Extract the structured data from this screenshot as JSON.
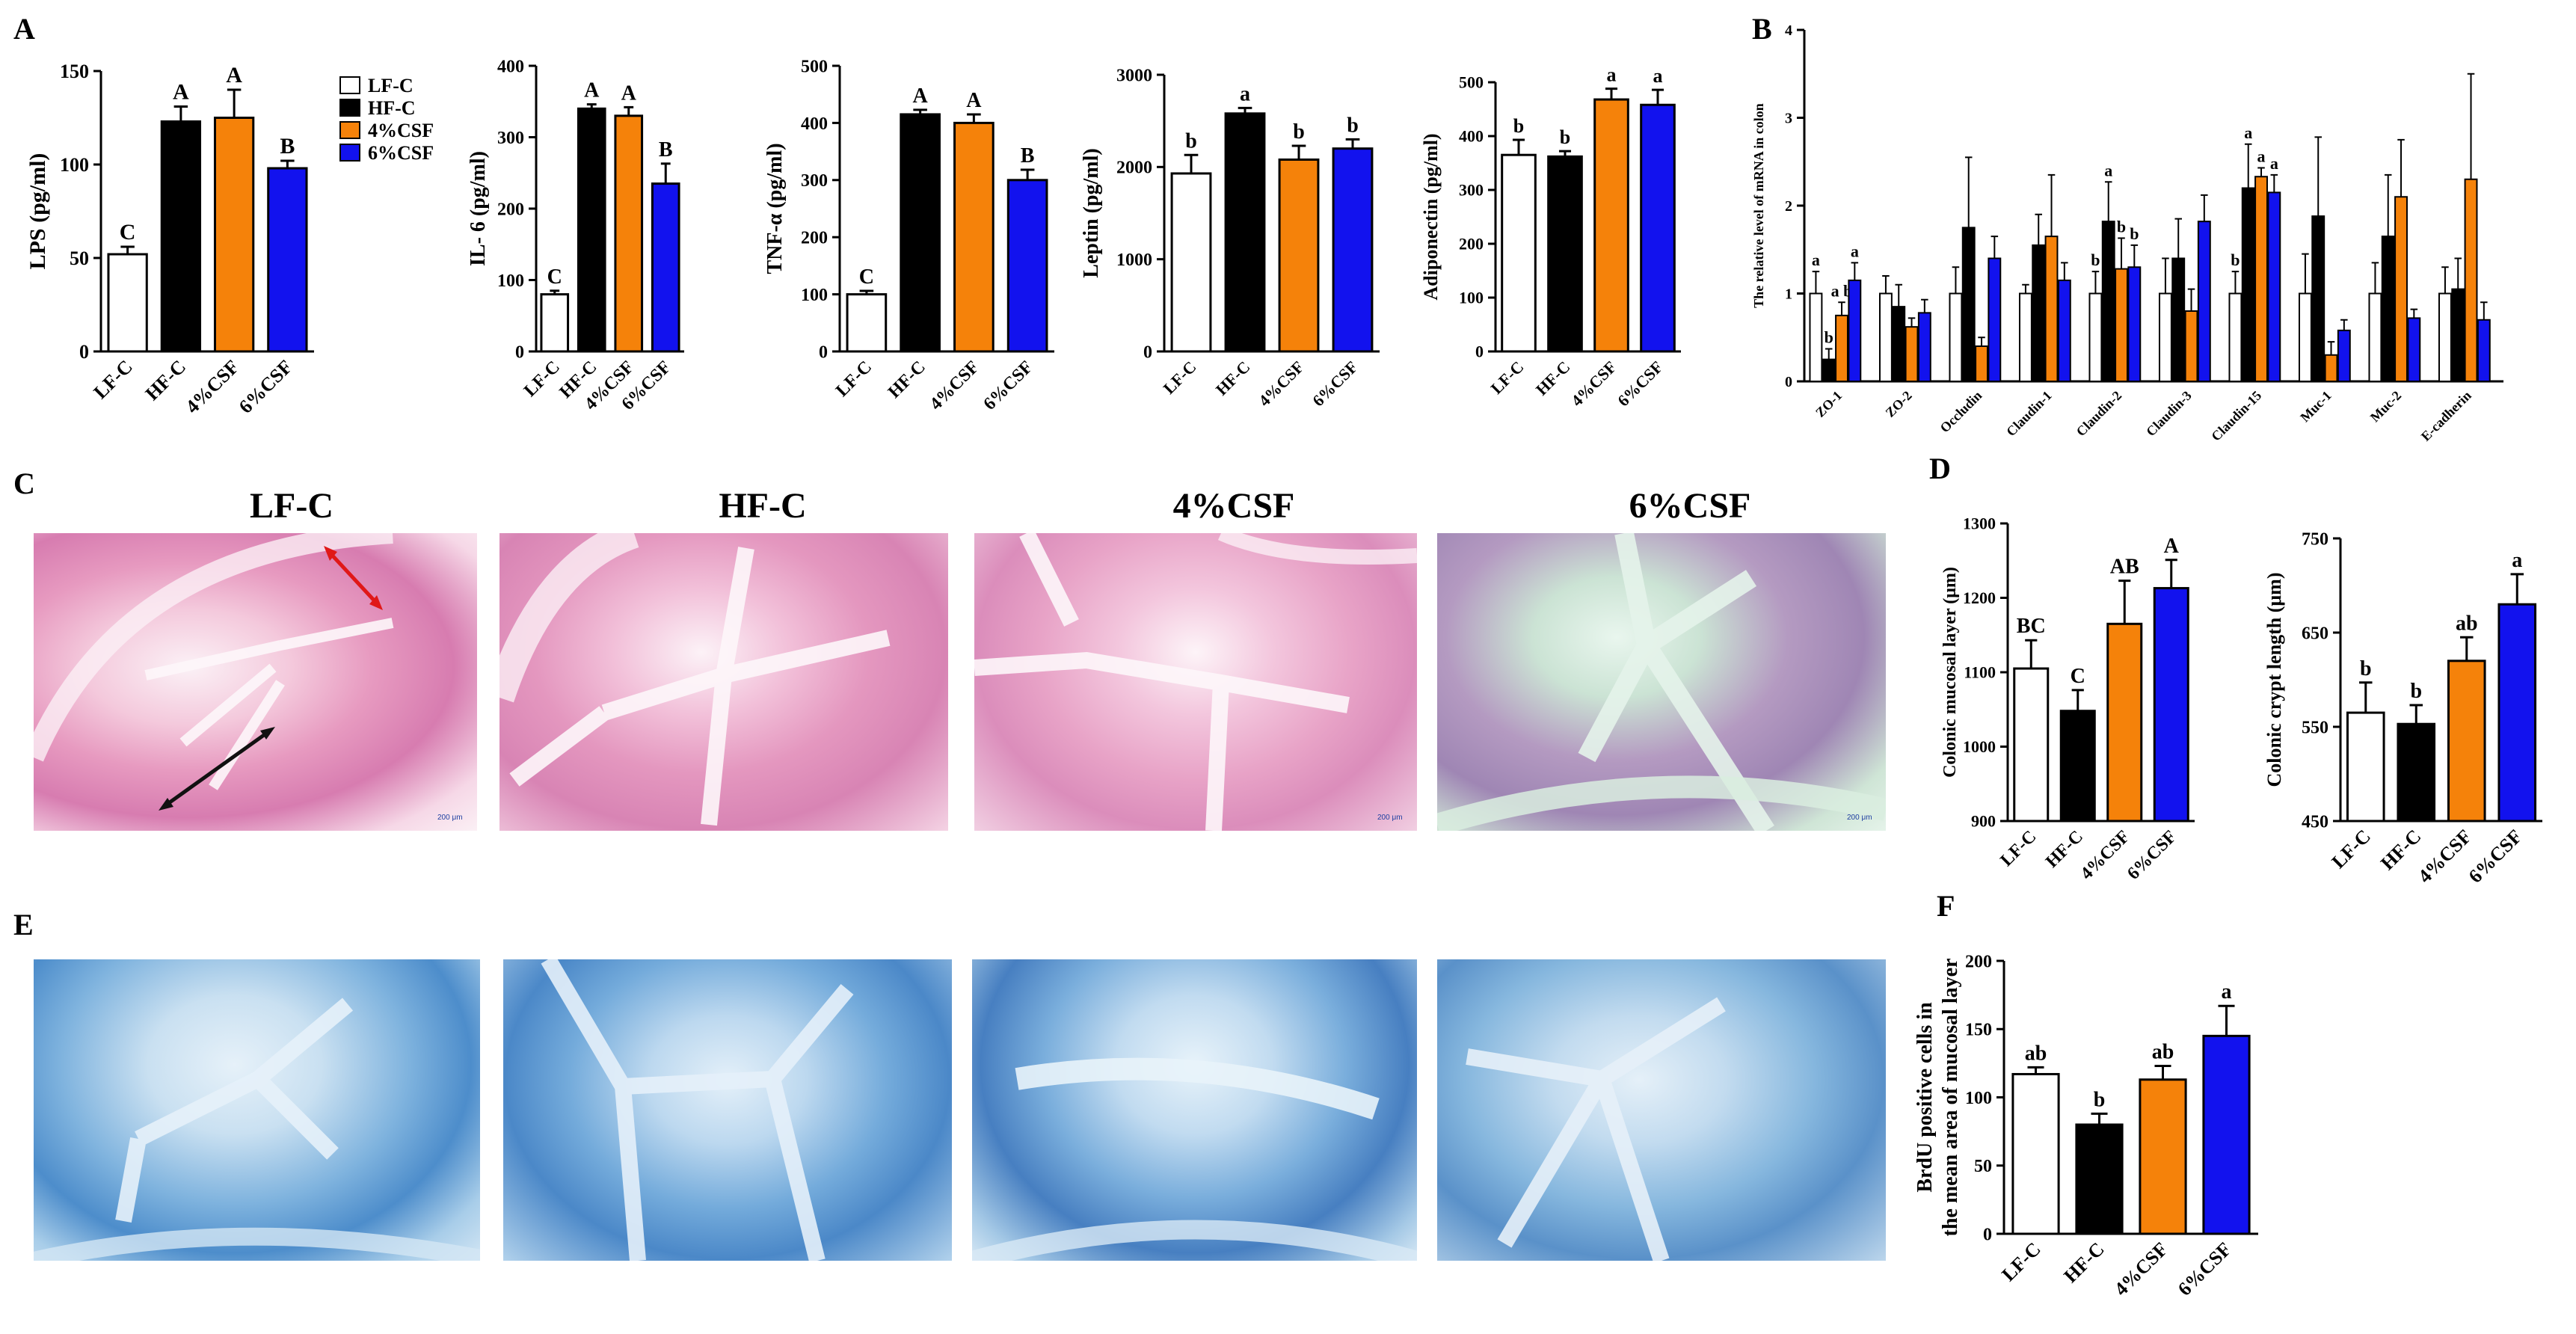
{
  "panel_labels": {
    "A": "A",
    "B": "B",
    "C": "C",
    "D": "D",
    "E": "E",
    "F": "F"
  },
  "colors": {
    "LF-C": "#ffffff",
    "HF-C": "#000000",
    "4%CSF": "#f5820a",
    "6%CSF": "#1212ee"
  },
  "legend": [
    "LF-C",
    "HF-C",
    "4%CSF",
    "6%CSF"
  ],
  "micrograph_titles": [
    "LF-C",
    "HF-C",
    "4%CSF",
    "6%CSF"
  ],
  "scale_label": "200 μm",
  "chart_data": [
    {
      "id": "lps",
      "type": "bar",
      "ylabel": "LPS (pg/ml)",
      "ylim": [
        0,
        150
      ],
      "yticks": [
        0,
        50,
        100,
        150
      ],
      "categories": [
        "LF-C",
        "HF-C",
        "4%CSF",
        "6%CSF"
      ],
      "values": [
        52,
        123,
        125,
        98
      ],
      "errors": [
        4,
        8,
        15,
        4
      ],
      "letters": [
        "C",
        "A",
        "A",
        "B"
      ]
    },
    {
      "id": "il6",
      "type": "bar",
      "ylabel": "IL- 6 (pg/ml)",
      "ylim": [
        0,
        400
      ],
      "yticks": [
        0,
        100,
        200,
        300,
        400
      ],
      "categories": [
        "LF-C",
        "HF-C",
        "4%CSF",
        "6%CSF"
      ],
      "values": [
        80,
        340,
        330,
        235
      ],
      "errors": [
        5,
        6,
        12,
        28
      ],
      "letters": [
        "C",
        "A",
        "A",
        "B"
      ]
    },
    {
      "id": "tnf",
      "type": "bar",
      "ylabel": "TNF-α  (pg/ml)",
      "ylim": [
        0,
        500
      ],
      "yticks": [
        0,
        100,
        200,
        300,
        400,
        500
      ],
      "categories": [
        "LF-C",
        "HF-C",
        "4%CSF",
        "6%CSF"
      ],
      "values": [
        100,
        415,
        400,
        300
      ],
      "errors": [
        6,
        8,
        15,
        18
      ],
      "letters": [
        "C",
        "A",
        "A",
        "B"
      ]
    },
    {
      "id": "leptin",
      "type": "bar",
      "ylabel": "Leptin (pg/ml)",
      "ylim": [
        0,
        3000
      ],
      "yticks": [
        0,
        1000,
        2000,
        3000
      ],
      "categories": [
        "LF-C",
        "HF-C",
        "4%CSF",
        "6%CSF"
      ],
      "values": [
        1930,
        2580,
        2080,
        2200
      ],
      "errors": [
        200,
        60,
        150,
        100
      ],
      "letters": [
        "b",
        "a",
        "b",
        "b"
      ]
    },
    {
      "id": "adiponectin",
      "type": "bar",
      "ylabel": "Adiponectin (pg/ml)",
      "ylim": [
        0,
        500
      ],
      "yticks": [
        0,
        100,
        200,
        300,
        400,
        500
      ],
      "categories": [
        "LF-C",
        "HF-C",
        "4%CSF",
        "6%CSF"
      ],
      "values": [
        365,
        362,
        468,
        458
      ],
      "errors": [
        28,
        10,
        20,
        28
      ],
      "letters": [
        "b",
        "b",
        "a",
        "a"
      ]
    },
    {
      "id": "mrna",
      "type": "bar",
      "ylabel": "The relative level of mRNA in colon",
      "ylim": [
        0,
        4
      ],
      "yticks": [
        0,
        1,
        2,
        3,
        4
      ],
      "categories": [
        "ZO-1",
        "ZO-2",
        "Occludin",
        "Claudin-1",
        "Claudin-2",
        "Claudin-3",
        "Claudin-15",
        "Muc-1",
        "Muc-2",
        "E-cadherin"
      ],
      "series": [
        {
          "name": "LF-C",
          "values": [
            1.0,
            1.0,
            1.0,
            1.0,
            1.0,
            1.0,
            1.0,
            1.0,
            1.0,
            1.0
          ],
          "errors": [
            0.25,
            0.2,
            0.3,
            0.1,
            0.25,
            0.4,
            0.25,
            0.45,
            0.35,
            0.3
          ]
        },
        {
          "name": "HF-C",
          "values": [
            0.25,
            0.85,
            1.75,
            1.55,
            1.82,
            1.4,
            2.2,
            1.88,
            1.65,
            1.05
          ],
          "errors": [
            0.12,
            0.25,
            0.8,
            0.35,
            0.45,
            0.45,
            0.5,
            0.9,
            0.7,
            0.35
          ]
        },
        {
          "name": "4%CSF",
          "values": [
            0.75,
            0.62,
            0.4,
            1.65,
            1.28,
            0.8,
            2.33,
            0.3,
            2.1,
            2.3
          ],
          "errors": [
            0.15,
            0.1,
            0.1,
            0.7,
            0.35,
            0.25,
            0.1,
            0.15,
            0.65,
            1.2
          ]
        },
        {
          "name": "6%CSF",
          "values": [
            1.15,
            0.78,
            1.4,
            1.15,
            1.3,
            1.82,
            2.15,
            0.58,
            0.72,
            0.7
          ],
          "errors": [
            0.2,
            0.15,
            0.25,
            0.2,
            0.25,
            0.3,
            0.2,
            0.12,
            0.1,
            0.2
          ]
        }
      ],
      "letters": [
        [
          "a",
          "b",
          "a b",
          "a"
        ],
        [
          "",
          "",
          "",
          ""
        ],
        [
          "",
          "",
          "",
          ""
        ],
        [
          "",
          "",
          "",
          ""
        ],
        [
          "b",
          "a",
          "b",
          "b"
        ],
        [
          "",
          "",
          "",
          ""
        ],
        [
          "b",
          "a",
          "a",
          "a"
        ],
        [
          "",
          "",
          "",
          ""
        ],
        [
          "",
          "",
          "",
          ""
        ],
        [
          "",
          "",
          "",
          ""
        ]
      ]
    },
    {
      "id": "mucosal",
      "type": "bar",
      "ylabel": "Colonic mucosal layer (μm)",
      "ylim": [
        900,
        1300
      ],
      "yticks": [
        900,
        1000,
        1100,
        1200,
        1300
      ],
      "categories": [
        "LF-C",
        "HF-C",
        "4%CSF",
        "6%CSF"
      ],
      "values": [
        1105,
        1048,
        1165,
        1213
      ],
      "errors": [
        38,
        28,
        58,
        38
      ],
      "letters": [
        "BC",
        "C",
        "AB",
        "A"
      ]
    },
    {
      "id": "crypt",
      "type": "bar",
      "ylabel": "Colonic crypt length (μm)",
      "ylim": [
        450,
        750
      ],
      "yticks": [
        450,
        550,
        650,
        750
      ],
      "categories": [
        "LF-C",
        "HF-C",
        "4%CSF",
        "6%CSF"
      ],
      "values": [
        565,
        553,
        620,
        680
      ],
      "errors": [
        32,
        20,
        25,
        32
      ],
      "letters": [
        "b",
        "b",
        "ab",
        "a"
      ]
    },
    {
      "id": "brdu",
      "type": "bar",
      "ylabel": [
        "BrdU positive cells in",
        "the mean area of mucosal layer"
      ],
      "ylim": [
        0,
        200
      ],
      "yticks": [
        0,
        50,
        100,
        150,
        200
      ],
      "categories": [
        "LF-C",
        "HF-C",
        "4%CSF",
        "6%CSF"
      ],
      "values": [
        117,
        80,
        113,
        145
      ],
      "errors": [
        5,
        8,
        10,
        22
      ],
      "letters": [
        "ab",
        "b",
        "ab",
        "a"
      ]
    }
  ]
}
